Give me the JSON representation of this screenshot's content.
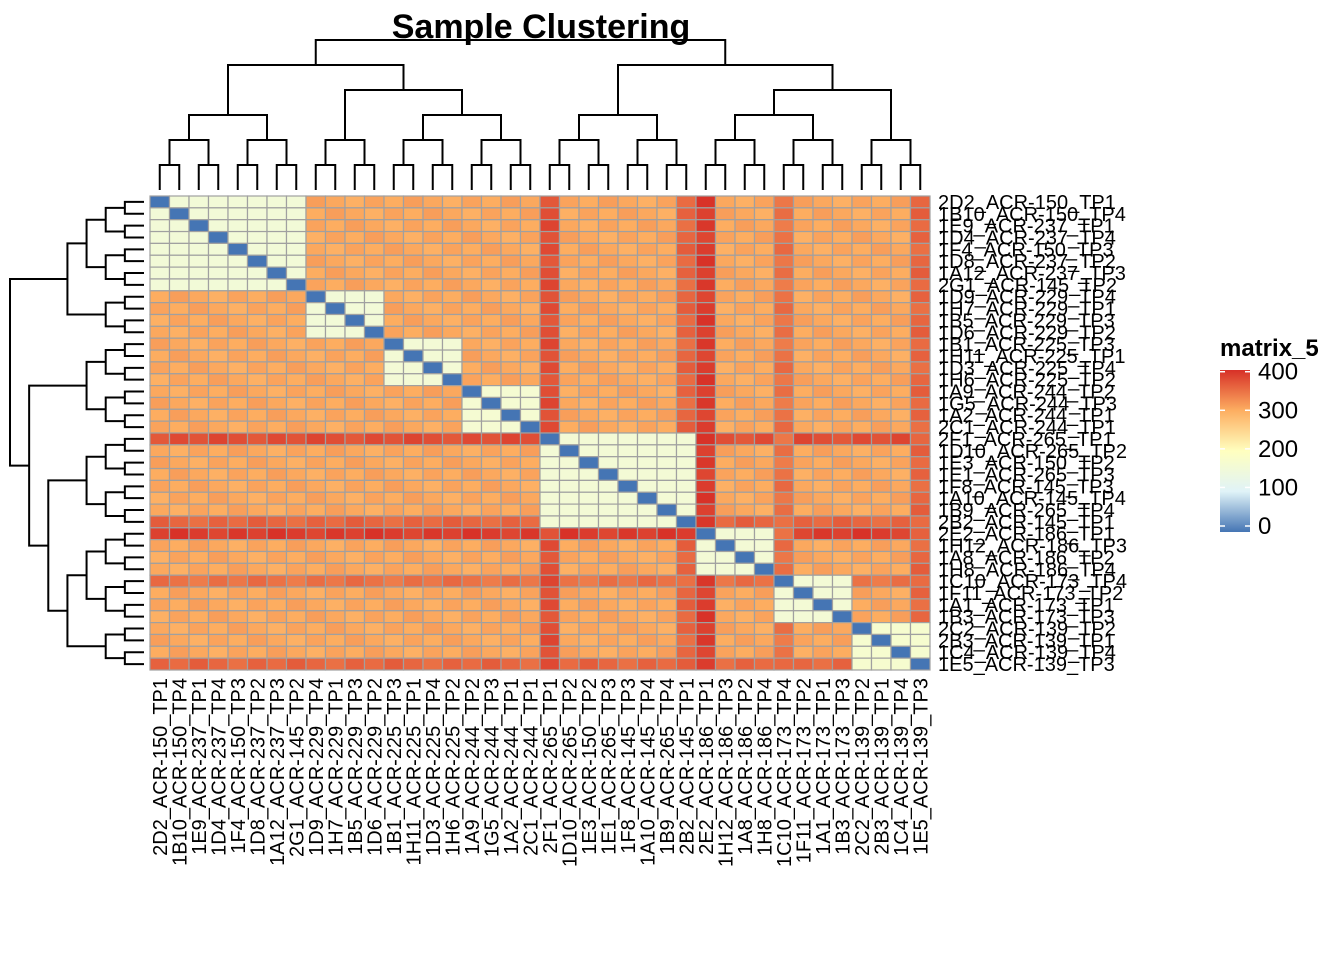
{
  "chart_data": {
    "type": "heatmap",
    "title": "Sample Clustering",
    "legend": {
      "title": "matrix_5",
      "ticks": [
        0,
        100,
        200,
        300,
        400
      ],
      "range": [
        0,
        420
      ],
      "placement": "right",
      "colors": [
        "#4575B4",
        "#E0F3F8",
        "#FFFFBF",
        "#FDAE61",
        "#D73027"
      ]
    },
    "cell_border_color": "#A0A0A0",
    "labels": [
      "2D2_ACR-150_TP1",
      "1B10_ACR-150_TP4",
      "1E9_ACR-237_TP1",
      "1D4_ACR-237_TP4",
      "1F4_ACR-150_TP3",
      "1D8_ACR-237_TP2",
      "1A12_ACR-237_TP3",
      "2G1_ACR-145_TP2",
      "1D9_ACR-229_TP4",
      "1H7_ACR-229_TP1",
      "1B5_ACR-229_TP3",
      "1D6_ACR-229_TP2",
      "1B1_ACR-225_TP3",
      "1H11_ACR-225_TP1",
      "1D3_ACR-225_TP4",
      "1H6_ACR-225_TP2",
      "1A9_ACR-244_TP2",
      "1G5_ACR-244_TP3",
      "1A2_ACR-244_TP1",
      "2C1_ACR-244_TP1",
      "2F1_ACR-265_TP1",
      "1D10_ACR-265_TP2",
      "1E3_ACR-150_TP2",
      "1E1_ACR-265_TP3",
      "1F8_ACR-145_TP3",
      "1A10_ACR-145_TP4",
      "1B9_ACR-265_TP4",
      "2B2_ACR-145_TP1",
      "2E2_ACR-186_TP1",
      "1H12_ACR-186_TP3",
      "1A8_ACR-186_TP2",
      "1H8_ACR-186_TP4",
      "1C10_ACR-173_TP4",
      "1F11_ACR-173_TP2",
      "1A1_ACR-173_TP1",
      "1B3_ACR-173_TP3",
      "2C2_ACR-139_TP2",
      "2B3_ACR-139_TP1",
      "1C4_ACR-139_TP4",
      "1E5_ACR-139_TP3"
    ],
    "row_labels": [
      "2D2_ACR-150_TP1",
      "1B10_ACR-150_TP4",
      "1E9_ACR-237_TP1",
      "1D4_ACR-237_TP4",
      "1F4_ACR-150_TP3",
      "1D8_ACR-237_TP2",
      "1A12_ACR-237_TP3",
      "2G1_ACR-145_TP2",
      "1D9_ACR-229_TP4",
      "1H7_ACR-229_TP1",
      "1B5_ACR-229_TP3",
      "1D6_ACR-229_TP2",
      "1B1_ACR-225_TP3",
      "1H11_ACR-225_TP1",
      "1D3_ACR-225_TP4",
      "1H6_ACR-225_TP2",
      "1A9_ACR-244_TP2",
      "1G5_ACR-244_TP3",
      "1A2_ACR-244_TP1",
      "2C1_ACR-244_TP1",
      "2F1_ACR-265_TP1",
      "1D10_ACR-265_TP2",
      "1E3_ACR-150_TP2",
      "1E1_ACR-265_TP3",
      "1F8_ACR-145_TP3",
      "1A10_ACR-145_TP4",
      "1B9_ACR-265_TP4",
      "2B2_ACR-145_TP1",
      "2E2_ACR-186_TP1",
      "1H12_ACR-186_TP3",
      "1A8_ACR-186_TP2",
      "1H8_ACR-186_TP4",
      "1C10_ACR-173_TP4",
      "1F11_ACR-173_TP2",
      "1A1_ACR-173_TP1",
      "1B3_ACR-173_TP3",
      "2C2_ACR-139_TP2",
      "2B3_ACR-139_TP1",
      "1C4_ACR-139_TP4",
      "1E5_ACR-139_TP3"
    ],
    "column_labels": [
      "2D2_ACR-150_TP1",
      "1B10_ACR-150_TP4",
      "1E9_ACR-237_TP1",
      "1D4_ACR-237_TP4",
      "1F4_ACR-150_TP3",
      "1D8_ACR-237_TP2",
      "1A12_ACR-237_TP3",
      "2G1_ACR-145_TP2",
      "1D9_ACR-229_TP4",
      "1H7_ACR-229_TP1",
      "1B5_ACR-229_TP3",
      "1D6_ACR-229_TP2",
      "1B1_ACR-225_TP3",
      "1H11_ACR-225_TP1",
      "1D3_ACR-225_TP4",
      "1H6_ACR-225_TP2",
      "1A9_ACR-244_TP2",
      "1G5_ACR-244_TP3",
      "1A2_ACR-244_TP1",
      "2C1_ACR-244_TP1",
      "2F1_ACR-265_TP1",
      "1D10_ACR-265_TP2",
      "1E3_ACR-150_TP2",
      "1E1_ACR-265_TP3",
      "1F8_ACR-145_TP3",
      "1A10_ACR-145_TP4",
      "1B9_ACR-265_TP4",
      "2B2_ACR-145_TP1",
      "2E2_ACR-186_TP1",
      "1H12_ACR-186_TP3",
      "1A8_ACR-186_TP2",
      "1H8_ACR-186_TP4",
      "1C10_ACR-173_TP4",
      "1F11_ACR-173_TP2",
      "1A1_ACR-173_TP1",
      "1B3_ACR-173_TP3",
      "2C2_ACR-139_TP2",
      "2B3_ACR-139_TP1",
      "1C4_ACR-139_TP4",
      "1E5_ACR-139_TP3"
    ],
    "clusters": [
      {
        "start": 0,
        "end": 7,
        "within": 165
      },
      {
        "start": 8,
        "end": 11,
        "within": 165
      },
      {
        "start": 12,
        "end": 15,
        "within": 170
      },
      {
        "start": 16,
        "end": 19,
        "within": 175
      },
      {
        "start": 20,
        "end": 27,
        "within": 170
      },
      {
        "start": 28,
        "end": 31,
        "within": 170
      },
      {
        "start": 32,
        "end": 35,
        "within": 170
      },
      {
        "start": 36,
        "end": 39,
        "within": 180
      }
    ],
    "between_cluster": 320,
    "hot_columns": {
      "20": 395,
      "28": 410,
      "32": 365,
      "39": 375
    },
    "hot_rows": {
      "27": 375
    },
    "row_dendrogram": "(((((0,1),(2,3)),((4,5),(6,7))),((8,9),(10,11))),((((12,13),(14,15)),((16,17),(18,19))),((((20,21),(22,23)),((24,25),(26,27))),((((28,29),(30,31)),((32,33),(34,35))),((36,37),(38,39))))))",
    "column_dendrogram": "(((((0,1),(2,3)),((4,5),(6,7))),(((8,9),(10,11)),(((12,13),(14,15)),((16,17),(18,19))))),((((20,21),(22,23)),((24,25),(26,27))),((((28,29),(30,31)),((32,33),(34,35))),((36,37),(38,39)))))"
  }
}
